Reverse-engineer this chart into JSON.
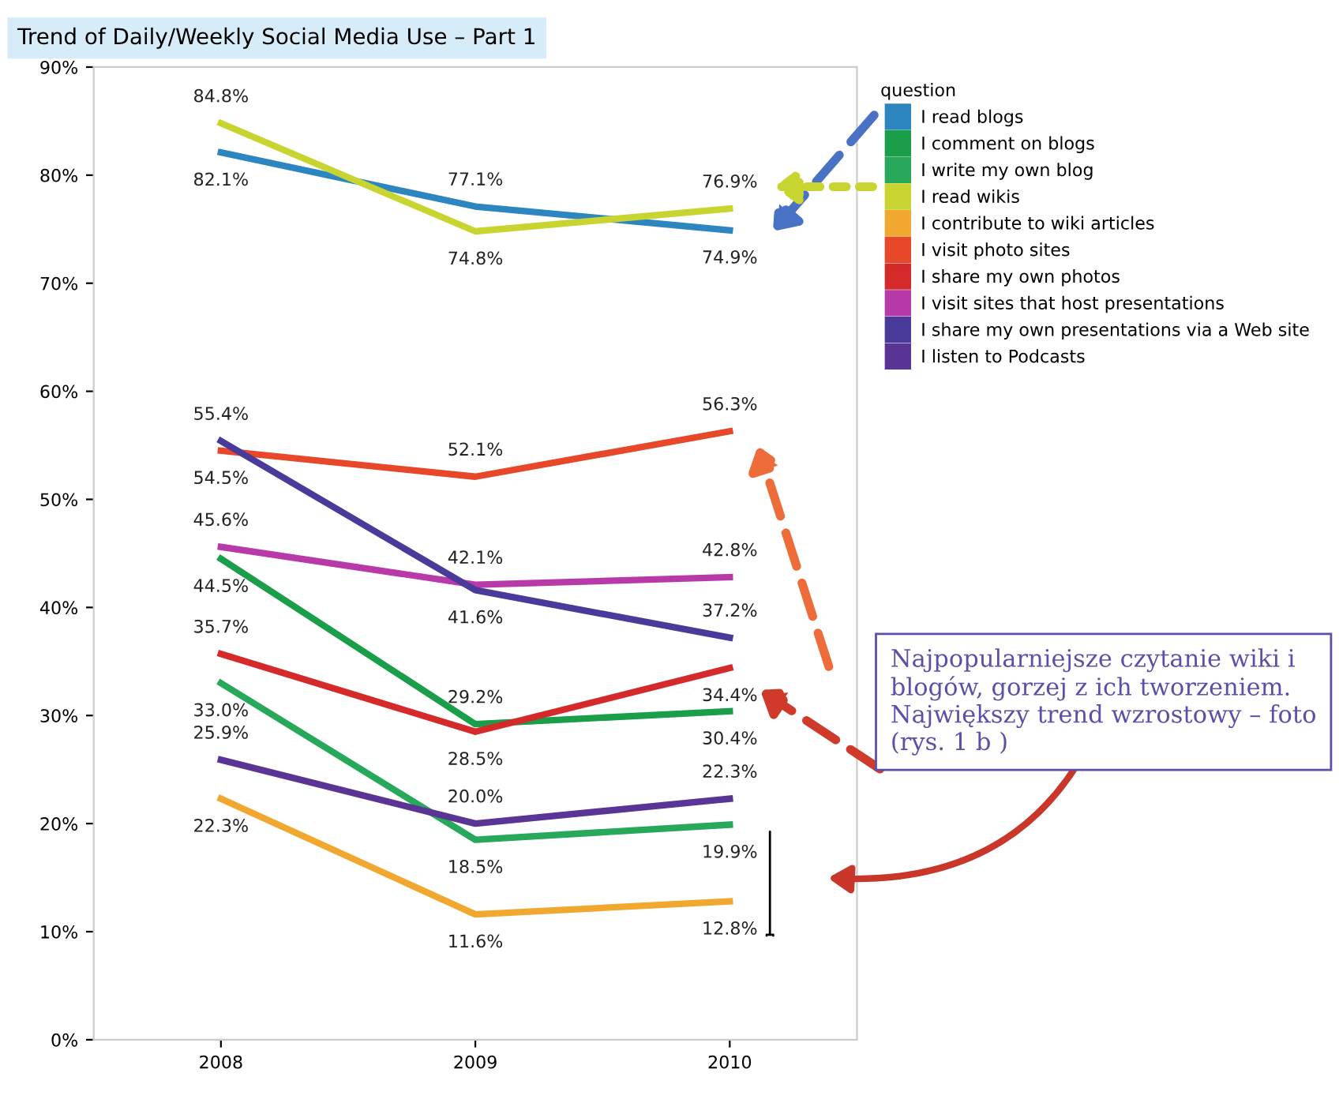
{
  "chart_data": {
    "type": "line",
    "title": "Trend of Daily/Weekly Social Media Use – Part 1",
    "legend_title": "question",
    "legend": "top right",
    "categories": [
      "2008",
      "2009",
      "2010"
    ],
    "ylim": [
      0,
      90
    ],
    "yticks": [
      {
        "value": 0,
        "label": "0%"
      },
      {
        "value": 10,
        "label": "10%"
      },
      {
        "value": 20,
        "label": "20%"
      },
      {
        "value": 30,
        "label": "30%"
      },
      {
        "value": 40,
        "label": "40%"
      },
      {
        "value": 50,
        "label": "50%"
      },
      {
        "value": 60,
        "label": "60%"
      },
      {
        "value": 70,
        "label": "70%"
      },
      {
        "value": 80,
        "label": "80%"
      },
      {
        "value": 90,
        "label": "90%"
      }
    ],
    "grid": false,
    "marker": "none",
    "line_style": "solid",
    "series": [
      {
        "name": "I read blogs",
        "color": "#2e86c1",
        "values": [
          82.1,
          77.1,
          74.9
        ],
        "value_labels": [
          "82.1%",
          "77.1%",
          "74.9%"
        ]
      },
      {
        "name": "I comment on blogs",
        "color": "#1a9e4a",
        "values": [
          44.5,
          29.2,
          30.4
        ],
        "value_labels": [
          "44.5%",
          "29.2%",
          "30.4%"
        ]
      },
      {
        "name": "I write my own blog",
        "color": "#27a85a",
        "values": [
          33.0,
          18.5,
          19.9
        ],
        "value_labels": [
          "33.0%",
          "18.5%",
          "19.9%"
        ]
      },
      {
        "name": "I read wikis",
        "color": "#c8d430",
        "values": [
          84.8,
          74.8,
          76.9
        ],
        "value_labels": [
          "84.8%",
          "74.8%",
          "76.9%"
        ]
      },
      {
        "name": "I contribute to wiki articles",
        "color": "#f0a830",
        "values": [
          22.3,
          11.6,
          12.8
        ],
        "value_labels": [
          "22.3%",
          "11.6%",
          "12.8%"
        ]
      },
      {
        "name": "I visit photo sites",
        "color": "#e8482a",
        "values": [
          54.5,
          52.1,
          56.3
        ],
        "value_labels": [
          "54.5%",
          "52.1%",
          "56.3%"
        ]
      },
      {
        "name": "I share my own photos",
        "color": "#d42a2a",
        "values": [
          35.7,
          28.5,
          34.4
        ],
        "value_labels": [
          "35.7%",
          "28.5%",
          "34.4%"
        ]
      },
      {
        "name": "I visit sites that host presentations",
        "color": "#b83aa8",
        "values": [
          45.6,
          42.1,
          42.8
        ],
        "value_labels": [
          "45.6%",
          "42.1%",
          "42.8%"
        ]
      },
      {
        "name": "I share my own presentations via a Web site",
        "color": "#4a3a9a",
        "values": [
          55.4,
          41.6,
          37.2
        ],
        "value_labels": [
          "55.4%",
          "41.6%",
          "37.2%"
        ]
      },
      {
        "name": "I listen to Podcasts",
        "color": "#5b3596",
        "values": [
          25.9,
          20.0,
          22.3
        ],
        "value_labels": [
          "25.9%",
          "20.0%",
          "22.3%"
        ]
      }
    ],
    "annotations": [
      "Najpopularniejsze czytanie wiki i blogów, gorzej z ich tworzeniem. Największy trend wzrostowy – foto (rys. 1 b )"
    ]
  }
}
